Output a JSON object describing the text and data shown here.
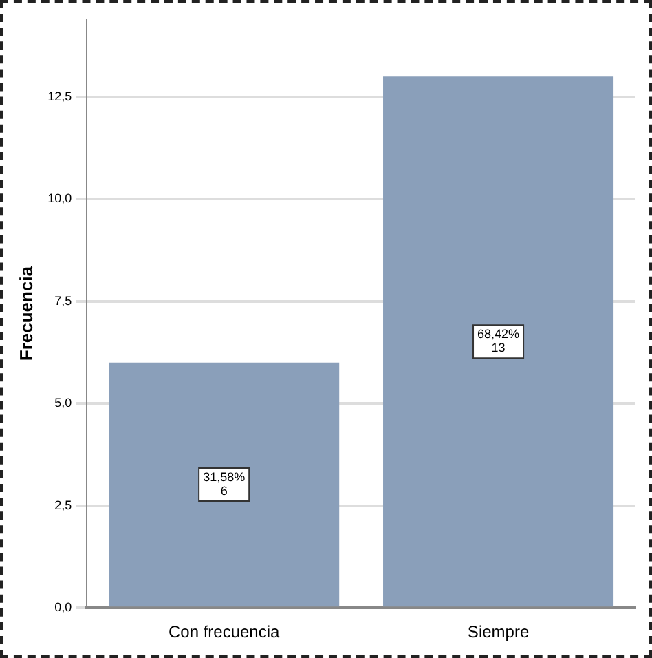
{
  "chart_data": {
    "type": "bar",
    "ylabel": "Frecuencia",
    "categories": [
      "Con frecuencia",
      "Siempre"
    ],
    "values": [
      6,
      13
    ],
    "color": "#8a9fba",
    "value_labels": [
      "31,58%\n6",
      "68,42%\n13"
    ],
    "ylim": [
      0,
      14.4
    ],
    "yticks": [
      {
        "value": 0,
        "label": "0,0"
      },
      {
        "value": 2.5,
        "label": "2,5"
      },
      {
        "value": 5,
        "label": "5,0"
      },
      {
        "value": 7.5,
        "label": "7,5"
      },
      {
        "value": 10,
        "label": "10,0"
      },
      {
        "value": 12.5,
        "label": "12,5"
      }
    ],
    "grid": "y",
    "legend": false
  }
}
